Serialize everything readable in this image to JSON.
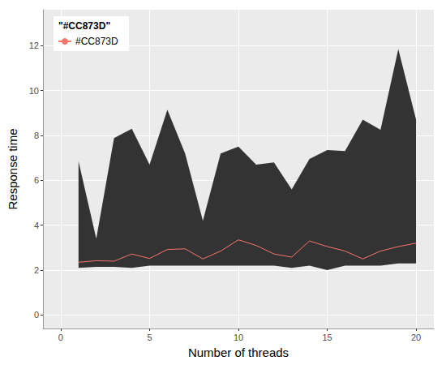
{
  "chart_data": {
    "type": "line",
    "xlabel": "Number of threads",
    "ylabel": "Response time",
    "x": [
      1,
      2,
      3,
      4,
      5,
      6,
      7,
      8,
      9,
      10,
      11,
      12,
      13,
      14,
      15,
      16,
      17,
      18,
      19,
      20
    ],
    "series": [
      {
        "name": "#CC873D",
        "color": "#F8766D",
        "values": [
          2.35,
          2.42,
          2.4,
          2.72,
          2.52,
          2.92,
          2.95,
          2.5,
          2.85,
          3.35,
          3.1,
          2.72,
          2.58,
          3.3,
          3.05,
          2.85,
          2.5,
          2.85,
          3.05,
          3.2
        ]
      }
    ],
    "ribbon": {
      "color": "#333333",
      "lower": [
        2.1,
        2.15,
        2.15,
        2.1,
        2.2,
        2.2,
        2.2,
        2.2,
        2.2,
        2.2,
        2.2,
        2.2,
        2.1,
        2.2,
        2.0,
        2.2,
        2.2,
        2.2,
        2.3,
        2.3
      ],
      "upper": [
        6.85,
        3.4,
        7.88,
        8.3,
        6.7,
        9.15,
        7.2,
        4.2,
        7.2,
        7.5,
        6.7,
        6.8,
        5.6,
        6.95,
        7.35,
        7.3,
        8.7,
        8.25,
        11.85,
        8.7
      ]
    },
    "legend_title": "\"#CC873D\"",
    "legend": "top-left",
    "xlim": [
      -1,
      21
    ],
    "xticks": [
      0,
      5,
      10,
      15,
      20
    ],
    "ylim": [
      -0.6,
      13.6
    ],
    "yticks": [
      0,
      2,
      4,
      6,
      8,
      10,
      12
    ],
    "grid": true
  }
}
